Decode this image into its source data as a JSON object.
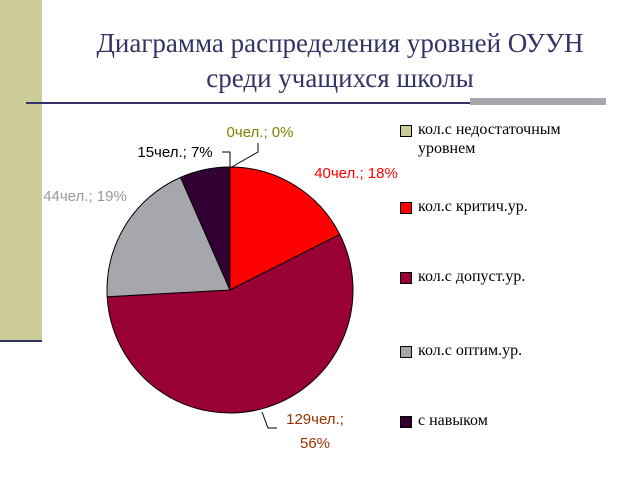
{
  "chart_data": {
    "type": "pie",
    "title": "Диаграмма распределения уровней ОУУН среди учащихся школы",
    "categories": [
      "кол.с недостаточным уровнем",
      "кол.с критич.ур.",
      "кол.с допуст.ур.",
      "кол.с оптим.ур.",
      "с навыком"
    ],
    "values": [
      0,
      40,
      129,
      44,
      15
    ],
    "value_labels": [
      "0чел.; 0%",
      "40чел.; 18%",
      "129чел.; 56%",
      "44чел.; 19%",
      "15чел.; 7%"
    ],
    "colors": [
      "#cccc99",
      "#ff0000",
      "#990033",
      "#a6a6ad",
      "#330033"
    ],
    "label_colors": [
      "#808000",
      "#ff0000",
      "#993300",
      "#999999",
      "#000000"
    ],
    "legend": "right"
  }
}
